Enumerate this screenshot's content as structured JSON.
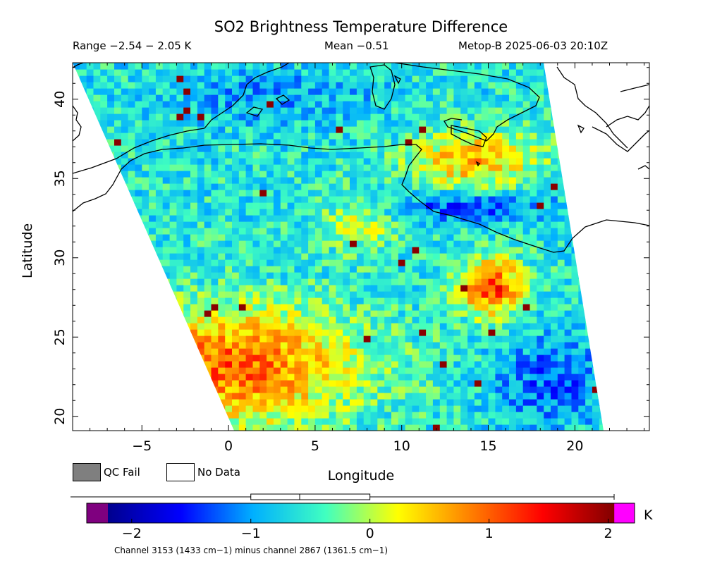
{
  "title": "SO2 Brightness Temperature Difference",
  "subtitle": {
    "range": "Range −2.54 − 2.05 K",
    "mean": "Mean −0.51",
    "satellite": "Metop-B 2025-06-03 20:10Z"
  },
  "axes": {
    "xlabel": "Longitude",
    "ylabel": "Latitude",
    "xlim": [
      -9,
      24.3
    ],
    "ylim": [
      19.1,
      42.3
    ],
    "xticks": [
      -5,
      0,
      5,
      10,
      15,
      20
    ],
    "yticks": [
      20,
      25,
      30,
      35,
      40
    ],
    "xtick_labels": [
      "−5",
      "0",
      "5",
      "10",
      "15",
      "20"
    ],
    "ytick_labels": [
      "20",
      "25",
      "30",
      "35",
      "40"
    ]
  },
  "legend": {
    "qc_fail": "QC Fail",
    "no_data": "No Data",
    "qc_fail_color": "#7f7f7f",
    "no_data_color": "#ffffff"
  },
  "colorbar": {
    "unit": "K",
    "range": [
      -2.2,
      2.05
    ],
    "ticks": [
      -2,
      -1,
      0,
      1,
      2
    ],
    "tick_labels": [
      "−2",
      "−1",
      "0",
      "1",
      "2"
    ],
    "under_color": "#7f007f",
    "over_color": "#ff00ff",
    "colormap": [
      "#00008f",
      "#0000ff",
      "#00b0ff",
      "#40ffc0",
      "#ffff00",
      "#ff8000",
      "#ff0000",
      "#800000"
    ],
    "box_whisker": {
      "min": -2.54,
      "max": 2.05,
      "q1": -1.0,
      "median": -0.59,
      "q3": 0.0
    }
  },
  "footnote": "Channel 3153 (1433 cm−1) minus channel 2867 (1361.5 cm−1)",
  "chart_data": {
    "type": "heatmap",
    "title": "SO2 Brightness Temperature Difference",
    "xlabel": "Longitude",
    "ylabel": "Latitude",
    "xlim": [
      -9,
      24.3
    ],
    "ylim": [
      19.1,
      42.3
    ],
    "value_range": [
      -2.54,
      2.05
    ],
    "mean": -0.51,
    "units": "K",
    "swath_corners_lonlat": [
      [
        -9,
        42.3
      ],
      [
        18.3,
        42.3
      ],
      [
        21.7,
        19.1
      ],
      [
        0.4,
        19.1
      ]
    ],
    "cell_size_deg": [
      0.4,
      0.4
    ],
    "field_regions": [
      {
        "lon": [
          -8,
          8
        ],
        "lat": [
          19,
          27
        ],
        "value": 1.0
      },
      {
        "lon": [
          13,
          17
        ],
        "lat": [
          26,
          30
        ],
        "value": 1.2
      },
      {
        "lon": [
          10,
          18
        ],
        "lat": [
          34,
          38
        ],
        "value": 0.6
      },
      {
        "lon": [
          5,
          10
        ],
        "lat": [
          30,
          34
        ],
        "value": 0.1
      },
      {
        "lon": [
          8,
          19
        ],
        "lat": [
          32,
          34
        ],
        "value": -1.4
      },
      {
        "lon": [
          15,
          22
        ],
        "lat": [
          19,
          25
        ],
        "value": -1.3
      },
      {
        "lon": [
          -5,
          9
        ],
        "lat": [
          38,
          42
        ],
        "value": -1.0
      }
    ],
    "coastlines": "Western Mediterranean: Spain, Balearics, Algeria, Tunisia, Sardinia, Italy, Sicily, Libya, Greece"
  }
}
